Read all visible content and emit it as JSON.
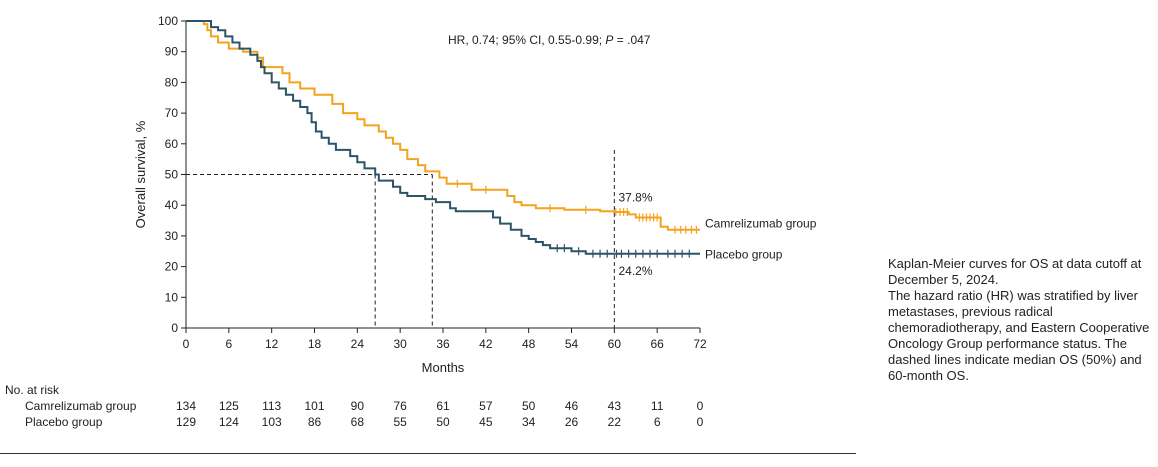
{
  "chart_data": {
    "type": "line",
    "title": "",
    "xlabel": "Months",
    "ylabel": "Overall survival, %",
    "xlim": [
      0,
      72
    ],
    "ylim": [
      0,
      100
    ],
    "x_ticks": [
      0,
      6,
      12,
      18,
      24,
      30,
      36,
      42,
      48,
      54,
      60,
      66,
      72
    ],
    "y_ticks": [
      0,
      10,
      20,
      30,
      40,
      50,
      60,
      70,
      80,
      90,
      100
    ],
    "hr_annotation": {
      "prefix": "HR, 0.74; 95% CI, 0.55-0.99; ",
      "p_label": "P",
      "p_value": " = .047"
    },
    "median_lines": [
      {
        "x": 26.5,
        "y": 50
      },
      {
        "x": 34.5,
        "y": 50
      }
    ],
    "landmark_line": {
      "x": 60,
      "y_top": 58
    },
    "landmark_labels": [
      {
        "text": "37.8%",
        "x": 60.3,
        "y": 42.5
      },
      {
        "text": "24.2%",
        "x": 60.3,
        "y": 18.5
      }
    ],
    "series": [
      {
        "name": "Camrelizumab group",
        "label": "Camrelizumab group",
        "color": "#F5A21C",
        "label_y": 34,
        "points": [
          [
            0,
            100
          ],
          [
            2.5,
            100
          ],
          [
            2.5,
            99
          ],
          [
            3,
            99
          ],
          [
            3,
            97
          ],
          [
            3.5,
            97
          ],
          [
            3.5,
            95
          ],
          [
            4.5,
            95
          ],
          [
            4.5,
            93
          ],
          [
            6,
            93
          ],
          [
            6,
            91
          ],
          [
            8,
            91
          ],
          [
            8,
            90
          ],
          [
            10,
            90
          ],
          [
            10,
            88
          ],
          [
            10.8,
            88
          ],
          [
            10.8,
            85
          ],
          [
            13.5,
            85
          ],
          [
            13.5,
            83
          ],
          [
            14.5,
            83
          ],
          [
            14.5,
            80
          ],
          [
            16,
            80
          ],
          [
            16,
            78
          ],
          [
            18,
            78
          ],
          [
            18,
            76
          ],
          [
            20.5,
            76
          ],
          [
            20.5,
            73
          ],
          [
            22,
            73
          ],
          [
            22,
            70
          ],
          [
            24,
            70
          ],
          [
            24,
            68
          ],
          [
            25,
            68
          ],
          [
            25,
            66
          ],
          [
            27,
            66
          ],
          [
            27,
            64
          ],
          [
            28,
            64
          ],
          [
            28,
            62
          ],
          [
            29,
            62
          ],
          [
            29,
            60
          ],
          [
            30,
            60
          ],
          [
            30,
            58
          ],
          [
            31,
            58
          ],
          [
            31,
            55
          ],
          [
            32.5,
            55
          ],
          [
            32.5,
            53
          ],
          [
            33.5,
            53
          ],
          [
            33.5,
            51
          ],
          [
            35.5,
            51
          ],
          [
            35.5,
            49
          ],
          [
            36.5,
            49
          ],
          [
            36.5,
            47
          ],
          [
            40,
            47
          ],
          [
            40,
            45
          ],
          [
            45,
            45
          ],
          [
            45,
            43
          ],
          [
            46,
            43
          ],
          [
            46,
            41
          ],
          [
            47,
            41
          ],
          [
            47,
            40
          ],
          [
            49,
            40
          ],
          [
            49,
            39
          ],
          [
            53,
            39
          ],
          [
            53,
            38.5
          ],
          [
            58,
            38.5
          ],
          [
            58,
            38
          ],
          [
            60,
            38
          ],
          [
            60,
            37.8
          ],
          [
            62,
            37.8
          ],
          [
            62,
            37
          ],
          [
            63,
            37
          ],
          [
            63,
            36
          ],
          [
            66.5,
            36
          ],
          [
            66.5,
            33
          ],
          [
            67.5,
            33
          ],
          [
            67.5,
            32
          ],
          [
            72,
            32
          ]
        ],
        "censors": [
          [
            38,
            47
          ],
          [
            42,
            45
          ],
          [
            51,
            39
          ],
          [
            56,
            38.5
          ],
          [
            60.2,
            37.8
          ],
          [
            60.8,
            37.8
          ],
          [
            61.3,
            37.8
          ],
          [
            61.8,
            37.8
          ],
          [
            63.5,
            36
          ],
          [
            64,
            36
          ],
          [
            64.5,
            36
          ],
          [
            65,
            36
          ],
          [
            65.5,
            36
          ],
          [
            66,
            36
          ],
          [
            68.5,
            32
          ],
          [
            69.3,
            32
          ],
          [
            70,
            32
          ],
          [
            70.8,
            32
          ],
          [
            71.5,
            32
          ]
        ]
      },
      {
        "name": "Placebo group",
        "label": "Placebo group",
        "color": "#2C5467",
        "label_y": 24,
        "points": [
          [
            0,
            100
          ],
          [
            3.5,
            100
          ],
          [
            3.5,
            98
          ],
          [
            4.5,
            98
          ],
          [
            4.5,
            97
          ],
          [
            5.5,
            97
          ],
          [
            5.5,
            95
          ],
          [
            6.5,
            95
          ],
          [
            6.5,
            93
          ],
          [
            7.5,
            93
          ],
          [
            7.5,
            91
          ],
          [
            9,
            91
          ],
          [
            9,
            89
          ],
          [
            10,
            89
          ],
          [
            10,
            87
          ],
          [
            10.5,
            87
          ],
          [
            10.5,
            85
          ],
          [
            11,
            85
          ],
          [
            11,
            83
          ],
          [
            12,
            83
          ],
          [
            12,
            80
          ],
          [
            13,
            80
          ],
          [
            13,
            78
          ],
          [
            14,
            78
          ],
          [
            14,
            76
          ],
          [
            15,
            76
          ],
          [
            15,
            74
          ],
          [
            16,
            74
          ],
          [
            16,
            72
          ],
          [
            17,
            72
          ],
          [
            17,
            70
          ],
          [
            17.6,
            70
          ],
          [
            17.6,
            67
          ],
          [
            18.2,
            67
          ],
          [
            18.2,
            64
          ],
          [
            19,
            64
          ],
          [
            19,
            62
          ],
          [
            20,
            62
          ],
          [
            20,
            60
          ],
          [
            21,
            60
          ],
          [
            21,
            58
          ],
          [
            23,
            58
          ],
          [
            23,
            56
          ],
          [
            24,
            56
          ],
          [
            24,
            54
          ],
          [
            25,
            54
          ],
          [
            25,
            52
          ],
          [
            26.5,
            52
          ],
          [
            26.5,
            50
          ],
          [
            27,
            50
          ],
          [
            27,
            48
          ],
          [
            29,
            48
          ],
          [
            29,
            46
          ],
          [
            30,
            46
          ],
          [
            30,
            44
          ],
          [
            31,
            44
          ],
          [
            31,
            43
          ],
          [
            33.5,
            43
          ],
          [
            33.5,
            42
          ],
          [
            35,
            42
          ],
          [
            35,
            41
          ],
          [
            37,
            41
          ],
          [
            37,
            39
          ],
          [
            37.8,
            39
          ],
          [
            37.8,
            38
          ],
          [
            43,
            38
          ],
          [
            43,
            36
          ],
          [
            44,
            36
          ],
          [
            44,
            34
          ],
          [
            45.5,
            34
          ],
          [
            45.5,
            32
          ],
          [
            47,
            32
          ],
          [
            47,
            30
          ],
          [
            48,
            30
          ],
          [
            48,
            29
          ],
          [
            49,
            29
          ],
          [
            49,
            28
          ],
          [
            50,
            28
          ],
          [
            50,
            27
          ],
          [
            51,
            27
          ],
          [
            51,
            26
          ],
          [
            54,
            26
          ],
          [
            54,
            25
          ],
          [
            56,
            25
          ],
          [
            56,
            24.2
          ],
          [
            72,
            24.2
          ]
        ],
        "censors": [
          [
            52,
            26
          ],
          [
            53,
            26
          ],
          [
            55,
            25
          ],
          [
            57,
            24.2
          ],
          [
            58,
            24.2
          ],
          [
            59,
            24.2
          ],
          [
            60.3,
            24.2
          ],
          [
            61,
            24.2
          ],
          [
            62,
            24.2
          ],
          [
            63,
            24.2
          ],
          [
            64,
            24.2
          ],
          [
            65,
            24.2
          ],
          [
            66,
            24.2
          ],
          [
            67.5,
            24.2
          ],
          [
            68.5,
            24.2
          ],
          [
            69.5,
            24.2
          ],
          [
            70.5,
            24.2
          ]
        ]
      }
    ],
    "risk_table": {
      "title": "No. at risk",
      "times": [
        0,
        6,
        12,
        18,
        24,
        30,
        36,
        42,
        48,
        54,
        60,
        66,
        72
      ],
      "rows": [
        {
          "label": "Camrelizumab group",
          "values": [
            "134",
            "125",
            "113",
            "101",
            "90",
            "76",
            "61",
            "57",
            "50",
            "46",
            "43",
            "11",
            "0"
          ]
        },
        {
          "label": "Placebo group",
          "values": [
            "129",
            "124",
            "103",
            "86",
            "68",
            "55",
            "50",
            "45",
            "34",
            "26",
            "22",
            "6",
            "0"
          ]
        }
      ]
    }
  },
  "caption": {
    "line1": "Kaplan-Meier curves for OS at data cutoff at December 5, 2024.",
    "line2": "The hazard ratio (HR) was stratified by liver metastases, previous radical chemoradiotherapy, and Eastern Cooperative Oncology Group performance status. The dashed lines indicate median OS (50%) and 60-month OS."
  }
}
